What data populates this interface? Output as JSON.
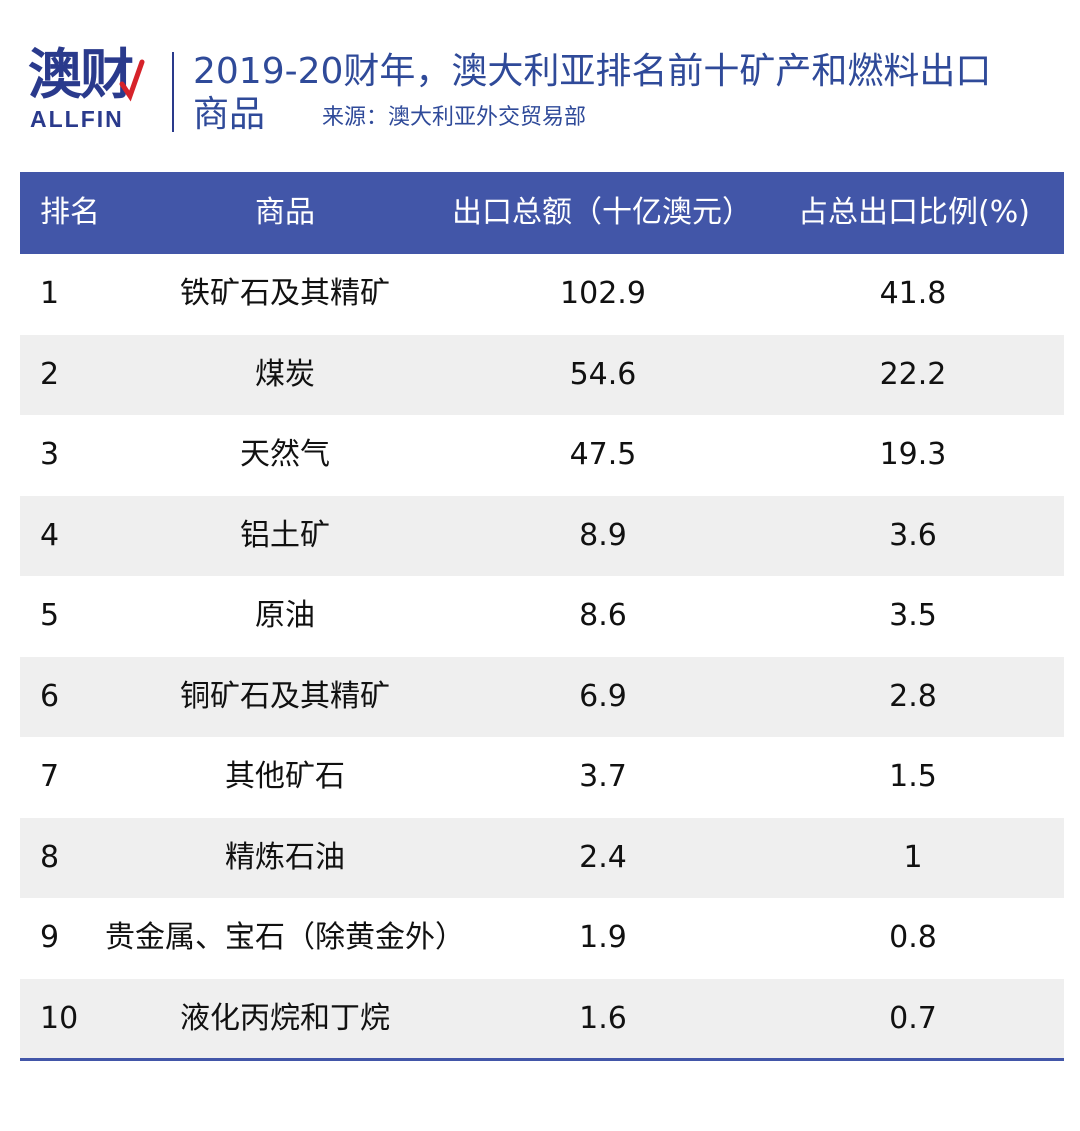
{
  "logo": {
    "cn": "澳财",
    "en": "ALLFIN",
    "brand_color": "#2a3a8c",
    "accent_color": "#d6232a"
  },
  "title": {
    "line1": "2019-20财年，澳大利亚排名前十矿产和燃料出口",
    "line2": "商品",
    "source": "来源：澳大利亚外交贸易部"
  },
  "watermark": {
    "cn": "澳财",
    "en": "ALLFIN"
  },
  "colors": {
    "header_bg": "#4256a8",
    "stripe": "#efefef",
    "title": "#2f4a99"
  },
  "chart_data": {
    "type": "table",
    "columns": [
      "排名",
      "商品",
      "出口总额（十亿澳元）",
      "占总出口比例(%)"
    ],
    "rows": [
      {
        "rank": "1",
        "name": "铁矿石及其精矿",
        "value": "102.9",
        "pct": "41.8"
      },
      {
        "rank": "2",
        "name": "煤炭",
        "value": "54.6",
        "pct": "22.2"
      },
      {
        "rank": "3",
        "name": "天然气",
        "value": "47.5",
        "pct": "19.3"
      },
      {
        "rank": "4",
        "name": "铝土矿",
        "value": "8.9",
        "pct": "3.6"
      },
      {
        "rank": "5",
        "name": "原油",
        "value": "8.6",
        "pct": "3.5"
      },
      {
        "rank": "6",
        "name": "铜矿石及其精矿",
        "value": "6.9",
        "pct": "2.8"
      },
      {
        "rank": "7",
        "name": "其他矿石",
        "value": "3.7",
        "pct": "1.5"
      },
      {
        "rank": "8",
        "name": "精炼石油",
        "value": "2.4",
        "pct": "1"
      },
      {
        "rank": "9",
        "name": "贵金属、宝石（除黄金外）",
        "value": "1.9",
        "pct": "0.8"
      },
      {
        "rank": "10",
        "name": "液化丙烷和丁烷",
        "value": "1.6",
        "pct": "0.7"
      }
    ]
  }
}
